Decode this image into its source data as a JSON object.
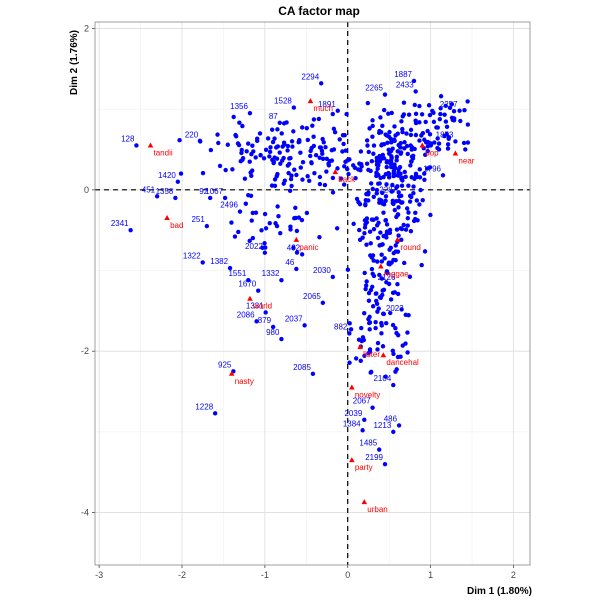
{
  "chart_data": {
    "type": "scatter",
    "title": "CA factor map",
    "xlabel": "Dim 1 (1.80%)",
    "ylabel": "Dim 2 (1.76%)",
    "xlim": [
      -3.05,
      2.2
    ],
    "ylim": [
      -4.65,
      2.08
    ],
    "x_ticks": [
      -3,
      -2,
      -1,
      0,
      1,
      2
    ],
    "y_ticks": [
      -4,
      -2,
      0,
      2
    ],
    "grid": true,
    "reference_lines": {
      "x": 0,
      "y": 0,
      "style": "dashed"
    },
    "colors": {
      "rows": "#0000ff",
      "columns": "#ff0000",
      "grid": "#dddddd",
      "panel_border": "#888888"
    },
    "series": [
      {
        "name": "rows",
        "marker": "circle",
        "labeled": [
          {
            "label": "2294",
            "x": -0.32,
            "y": 1.32
          },
          {
            "label": "1356",
            "x": -1.18,
            "y": 0.95
          },
          {
            "label": "1528",
            "x": -0.65,
            "y": 1.02
          },
          {
            "label": "87",
            "x": -0.82,
            "y": 0.83
          },
          {
            "label": "220",
            "x": -1.78,
            "y": 0.6
          },
          {
            "label": "1420",
            "x": -2.05,
            "y": 0.1
          },
          {
            "label": "451",
            "x": -2.3,
            "y": -0.08
          },
          {
            "label": "1358",
            "x": -2.08,
            "y": -0.1
          },
          {
            "label": "92",
            "x": -1.66,
            "y": -0.1
          },
          {
            "label": "1067",
            "x": -1.48,
            "y": -0.1
          },
          {
            "label": "2496",
            "x": -1.3,
            "y": -0.27
          },
          {
            "label": "251",
            "x": -1.7,
            "y": -0.45
          },
          {
            "label": "2341",
            "x": -2.62,
            "y": -0.5
          },
          {
            "label": "1322",
            "x": -1.75,
            "y": -0.9
          },
          {
            "label": "1382",
            "x": -1.42,
            "y": -0.97
          },
          {
            "label": "1551",
            "x": -1.2,
            "y": -1.12
          },
          {
            "label": "1332",
            "x": -0.8,
            "y": -1.12
          },
          {
            "label": "1670",
            "x": -1.08,
            "y": -1.25
          },
          {
            "label": "2022",
            "x": -1.0,
            "y": -0.78
          },
          {
            "label": "432",
            "x": -0.55,
            "y": -0.8
          },
          {
            "label": "46",
            "x": -0.62,
            "y": -0.98
          },
          {
            "label": "1331",
            "x": -0.99,
            "y": -1.52
          },
          {
            "label": "2086",
            "x": -1.1,
            "y": -1.63
          },
          {
            "label": "879",
            "x": -0.9,
            "y": -1.7
          },
          {
            "label": "980",
            "x": -0.8,
            "y": -1.85
          },
          {
            "label": "2037",
            "x": -0.52,
            "y": -1.68
          },
          {
            "label": "882",
            "x": 0.02,
            "y": -1.78
          },
          {
            "label": "2065",
            "x": -0.3,
            "y": -1.4
          },
          {
            "label": "2030",
            "x": -0.18,
            "y": -1.08
          },
          {
            "label": "2085",
            "x": -0.42,
            "y": -2.28
          },
          {
            "label": "925",
            "x": -1.38,
            "y": -2.25
          },
          {
            "label": "1228",
            "x": -1.6,
            "y": -2.77
          },
          {
            "label": "2104",
            "x": 0.55,
            "y": -2.42
          },
          {
            "label": "2067",
            "x": 0.3,
            "y": -2.7
          },
          {
            "label": "2039",
            "x": 0.2,
            "y": -2.85
          },
          {
            "label": "486",
            "x": 0.62,
            "y": -2.92
          },
          {
            "label": "1213",
            "x": 0.55,
            "y": -3.0
          },
          {
            "label": "1384",
            "x": 0.18,
            "y": -2.98
          },
          {
            "label": "1485",
            "x": 0.38,
            "y": -3.22
          },
          {
            "label": "2199",
            "x": 0.45,
            "y": -3.4
          },
          {
            "label": "2023",
            "x": 0.7,
            "y": -1.55
          },
          {
            "label": "2126",
            "x": 0.6,
            "y": -1.17
          },
          {
            "label": "1796",
            "x": 1.15,
            "y": 0.18
          },
          {
            "label": "2257",
            "x": 1.35,
            "y": 0.98
          },
          {
            "label": "1853",
            "x": 1.3,
            "y": 0.6
          },
          {
            "label": "2265",
            "x": 0.45,
            "y": 1.18
          },
          {
            "label": "1887",
            "x": 0.8,
            "y": 1.35
          },
          {
            "label": "2433",
            "x": 0.82,
            "y": 1.22
          },
          {
            "label": "2287",
            "x": 0.62,
            "y": -0.08
          },
          {
            "label": "1891",
            "x": -0.12,
            "y": 0.98
          },
          {
            "label": "128",
            "x": -2.55,
            "y": 0.55
          }
        ],
        "cloud_clusters": [
          {
            "x_center": -0.6,
            "x_spread": 0.9,
            "y_center": 0.42,
            "y_spread": 0.35,
            "count": 170
          },
          {
            "x_center": 0.55,
            "x_spread": 0.35,
            "y_center": 0.3,
            "y_spread": 0.5,
            "count": 170
          },
          {
            "x_center": 0.45,
            "x_spread": 0.32,
            "y_center": -0.6,
            "y_spread": 0.55,
            "count": 110
          },
          {
            "x_center": 0.4,
            "x_spread": 0.25,
            "y_center": -1.7,
            "y_spread": 0.55,
            "count": 70
          },
          {
            "x_center": -0.8,
            "x_spread": 0.5,
            "y_center": -0.45,
            "y_spread": 0.35,
            "count": 35
          },
          {
            "x_center": 1.1,
            "x_spread": 0.35,
            "y_center": 0.75,
            "y_spread": 0.35,
            "count": 60
          }
        ]
      },
      {
        "name": "columns",
        "marker": "triangle",
        "points": [
          {
            "label": "much",
            "x": -0.45,
            "y": 1.1
          },
          {
            "label": "bad",
            "x": -2.18,
            "y": -0.35
          },
          {
            "label": "world",
            "x": -1.18,
            "y": -1.35
          },
          {
            "label": "panic",
            "x": -0.62,
            "y": -0.62
          },
          {
            "label": "back",
            "x": -0.15,
            "y": 0.22
          },
          {
            "label": "near",
            "x": 1.3,
            "y": 0.45
          },
          {
            "label": "urban",
            "x": 0.2,
            "y": -3.87
          },
          {
            "label": "dancehal",
            "x": 0.43,
            "y": -2.05
          },
          {
            "label": "lister",
            "x": 0.15,
            "y": -1.95
          },
          {
            "label": "novelty",
            "x": 0.05,
            "y": -2.45
          },
          {
            "label": "party",
            "x": 0.05,
            "y": -3.35
          },
          {
            "label": "pop",
            "x": 0.9,
            "y": 0.55
          },
          {
            "label": "round",
            "x": 0.6,
            "y": -0.62
          },
          {
            "label": "nasty",
            "x": -1.4,
            "y": -2.28
          },
          {
            "label": "tandii",
            "x": -2.38,
            "y": 0.55
          },
          {
            "label": "reggae",
            "x": 0.4,
            "y": -0.95
          }
        ]
      }
    ]
  }
}
